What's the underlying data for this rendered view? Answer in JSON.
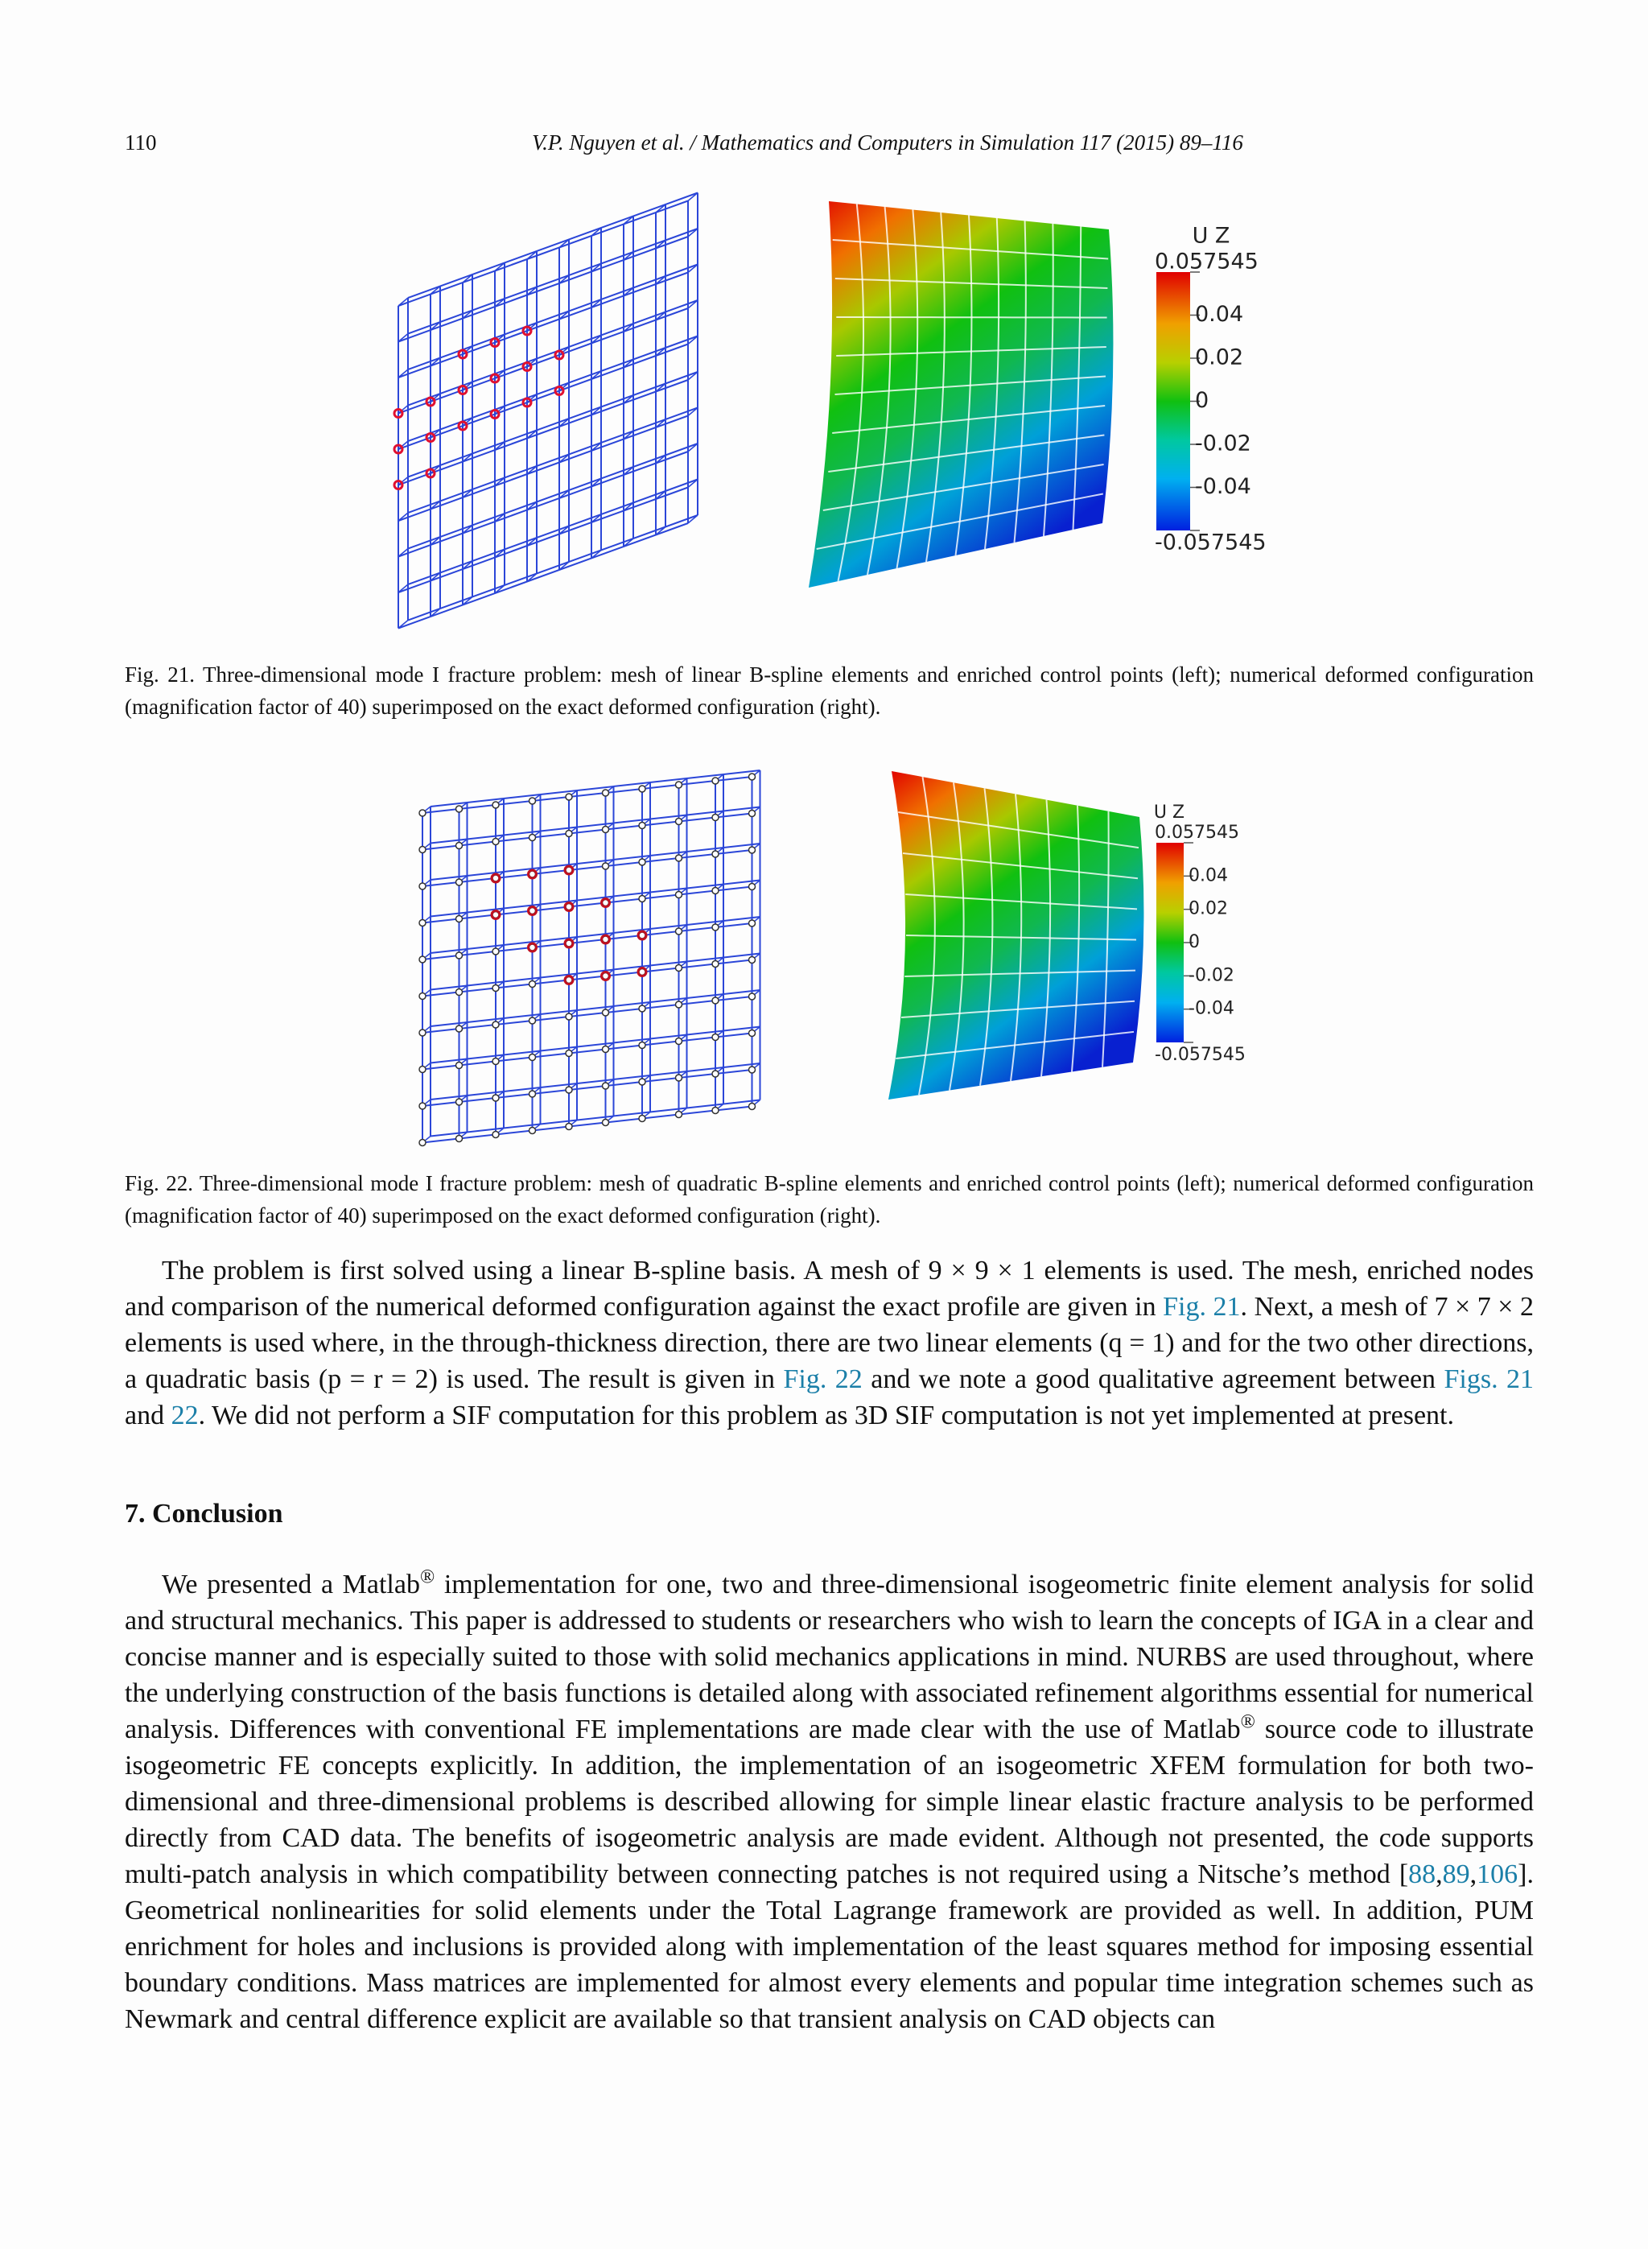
{
  "header": {
    "page_number": "110",
    "running_title": "V.P. Nguyen et al. / Mathematics and Computers in Simulation 117 (2015) 89–116"
  },
  "figures": [
    {
      "colorbar": {
        "title": "U Z",
        "labels": [
          "0.057545",
          "0.04",
          "0.02",
          "0",
          "-0.02",
          "-0.04",
          "-0.057545"
        ]
      },
      "caption": "Fig. 21.  Three-dimensional mode I fracture problem: mesh of linear B-spline elements and enriched control points (left); numerical deformed configuration (magnification factor of 40) superimposed on the exact deformed configuration (right)."
    },
    {
      "colorbar": {
        "title": "U Z",
        "labels": [
          "0.057545",
          "0.04",
          "0.02",
          "0",
          "-0.02",
          "-0.04",
          "-0.057545"
        ]
      },
      "caption": "Fig. 22.  Three-dimensional mode I fracture problem: mesh of quadratic B-spline elements and enriched control points (left); numerical deformed configuration (magnification factor of 40) superimposed on the exact deformed configuration (right)."
    }
  ],
  "body": {
    "paragraph": [
      "The problem is first solved using a linear B-spline basis. A mesh of 9 × 9 × 1 elements is used. The mesh, enriched nodes and comparison of the numerical deformed configuration against the exact profile are given in ",
      {
        "link": "Fig. 21"
      },
      ". Next, a mesh of 7 × 7 × 2 elements is used where, in the through-thickness direction, there are two linear elements (q = 1) and for the two other directions, a quadratic basis (p = r = 2) is used. The result is given in ",
      {
        "link": "Fig. 22"
      },
      " and we note a good qualitative agreement between ",
      {
        "link": "Figs. 21"
      },
      " and ",
      {
        "link": "22"
      },
      ". We did not perform a SIF computation for this problem as 3D SIF computation is not yet implemented at present."
    ]
  },
  "section": {
    "heading": "7.  Conclusion",
    "paragraph": [
      "We presented a Matlab",
      {
        "sup": "®"
      },
      " implementation for one, two and three-dimensional isogeometric finite element analysis for solid and structural mechanics. This paper is addressed to students or researchers who wish to learn the concepts of IGA in a clear and concise manner and is especially suited to those with solid mechanics applications in mind. NURBS are used throughout, where the underlying construction of the basis functions is detailed along with associated refinement algorithms essential for numerical analysis. Differences with conventional FE implementations are made clear with the use of Matlab",
      {
        "sup": "®"
      },
      " source code to illustrate isogeometric FE concepts explicitly. In addition, the implementation of an isogeometric XFEM formulation for both two-dimensional and three-dimensional problems is described allowing for simple linear elastic fracture analysis to be performed directly from CAD data. The benefits of isogeometric analysis are made evident. Although not presented, the code supports multi-patch analysis in which compatibility between connecting patches is not required using a Nitsche’s method [",
      {
        "link": "88"
      },
      ",",
      {
        "link": "89"
      },
      ",",
      {
        "link": "106"
      },
      "]. Geometrical nonlinearities for solid elements under the Total Lagrange framework are provided as well. In addition, PUM enrichment for holes and inclusions is provided along with implementation of the least squares method for imposing essential boundary conditions. Mass matrices are implemented for almost every elements and popular time integration schemes such as Newmark and central difference explicit are available so that transient analysis on CAD objects can"
    ]
  }
}
